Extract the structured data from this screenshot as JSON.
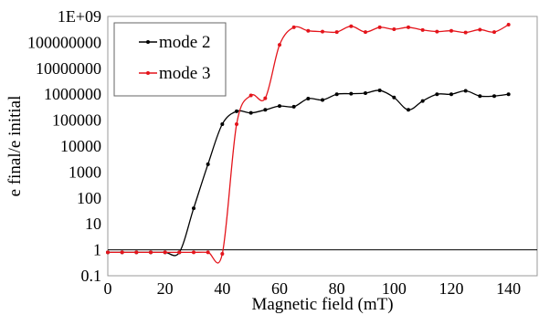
{
  "chart_data": {
    "type": "line",
    "xlabel": "Magnetic field (mT)",
    "ylabel": "e final/e initial",
    "xlim": [
      0,
      150
    ],
    "ylim": [
      0.1,
      1000000000
    ],
    "yscale": "log",
    "grid": false,
    "legend_position": "top-left",
    "x_ticks": [
      "0",
      "20",
      "40",
      "60",
      "80",
      "100",
      "120",
      "140"
    ],
    "y_ticks": [
      "0.1",
      "1",
      "10",
      "100",
      "1000",
      "10000",
      "100000",
      "1000000",
      "10000000",
      "100000000",
      "1E+09"
    ],
    "reference_line_y": 1,
    "series": [
      {
        "name": "mode 2",
        "color": "#000000",
        "x": [
          0,
          5,
          10,
          15,
          20,
          25,
          30,
          35,
          40,
          45,
          50,
          55,
          60,
          65,
          70,
          75,
          80,
          85,
          90,
          95,
          100,
          105,
          110,
          115,
          120,
          125,
          130,
          135,
          140
        ],
        "y": [
          0.8,
          0.8,
          0.8,
          0.8,
          0.8,
          0.8,
          40,
          2000,
          70000,
          220000,
          190000,
          250000,
          350000,
          330000,
          680000,
          600000,
          1000000,
          1050000,
          1100000,
          1400000,
          750000,
          250000,
          550000,
          1000000,
          1000000,
          1350000,
          850000,
          850000,
          1000000
        ]
      },
      {
        "name": "mode 3",
        "color": "#e4141b",
        "x": [
          0,
          5,
          10,
          15,
          20,
          25,
          30,
          35,
          40,
          45,
          50,
          55,
          60,
          65,
          70,
          75,
          80,
          85,
          90,
          95,
          100,
          105,
          110,
          115,
          120,
          125,
          130,
          135,
          140
        ],
        "y": [
          0.8,
          0.8,
          0.8,
          0.8,
          0.8,
          0.8,
          0.8,
          0.8,
          0.7,
          70000,
          900000,
          700000,
          80000000,
          380000000,
          280000000,
          260000000,
          250000000,
          420000000,
          250000000,
          380000000,
          320000000,
          380000000,
          300000000,
          260000000,
          280000000,
          240000000,
          310000000,
          250000000,
          480000000
        ]
      }
    ]
  }
}
